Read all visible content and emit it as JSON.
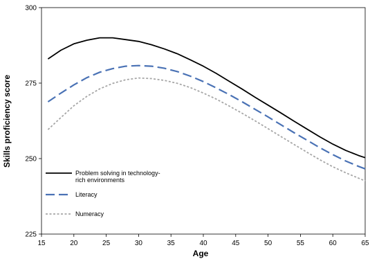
{
  "chart_data": {
    "type": "line",
    "title": "",
    "xlabel": "Age",
    "ylabel": "Skills proficiency score",
    "xlim": [
      15,
      65
    ],
    "ylim": [
      225,
      300
    ],
    "xticks": [
      15,
      20,
      25,
      30,
      35,
      40,
      45,
      50,
      55,
      60,
      65
    ],
    "yticks": [
      225,
      250,
      275,
      300
    ],
    "grid": false,
    "legend_position": "left",
    "series": [
      {
        "name_lines": [
          "Problem solving in technology-",
          "rich environments"
        ],
        "style": "solid",
        "color": "#000000",
        "points": [
          [
            16,
            283
          ],
          [
            18,
            285.9
          ],
          [
            20,
            288
          ],
          [
            22,
            289.2
          ],
          [
            24,
            290
          ],
          [
            26,
            290
          ],
          [
            28,
            289.4
          ],
          [
            30,
            288.8
          ],
          [
            32,
            287.7
          ],
          [
            34,
            286.3
          ],
          [
            36,
            284.7
          ],
          [
            38,
            282.7
          ],
          [
            40,
            280.6
          ],
          [
            42,
            278.2
          ],
          [
            44,
            275.6
          ],
          [
            46,
            273
          ],
          [
            48,
            270.3
          ],
          [
            50,
            267.7
          ],
          [
            52,
            265.1
          ],
          [
            54,
            262.4
          ],
          [
            56,
            259.8
          ],
          [
            58,
            257.2
          ],
          [
            60,
            254.8
          ],
          [
            62,
            252.7
          ],
          [
            64,
            251
          ],
          [
            65,
            250.3
          ]
        ]
      },
      {
        "name": "Literacy",
        "style": "dashed",
        "color": "#4a72b5",
        "points": [
          [
            16,
            268.8
          ],
          [
            18,
            271.7
          ],
          [
            20,
            274.4
          ],
          [
            22,
            276.8
          ],
          [
            24,
            278.6
          ],
          [
            26,
            279.8
          ],
          [
            28,
            280.6
          ],
          [
            30,
            280.8
          ],
          [
            32,
            280.6
          ],
          [
            34,
            279.9
          ],
          [
            36,
            278.8
          ],
          [
            38,
            277.3
          ],
          [
            40,
            275.5
          ],
          [
            42,
            273.4
          ],
          [
            44,
            271.2
          ],
          [
            46,
            268.8
          ],
          [
            48,
            266.3
          ],
          [
            50,
            263.8
          ],
          [
            52,
            261.2
          ],
          [
            54,
            258.6
          ],
          [
            56,
            256.1
          ],
          [
            58,
            253.6
          ],
          [
            60,
            251.3
          ],
          [
            62,
            249.2
          ],
          [
            64,
            247.4
          ],
          [
            65,
            246.6
          ]
        ]
      },
      {
        "name": "Numeracy",
        "style": "dotted",
        "color": "#a6a6a6",
        "points": [
          [
            16,
            259.6
          ],
          [
            18,
            263.6
          ],
          [
            20,
            267.5
          ],
          [
            22,
            270.6
          ],
          [
            24,
            273.1
          ],
          [
            26,
            274.9
          ],
          [
            28,
            276.1
          ],
          [
            30,
            276.7
          ],
          [
            32,
            276.5
          ],
          [
            34,
            275.9
          ],
          [
            36,
            274.9
          ],
          [
            38,
            273.5
          ],
          [
            40,
            271.7
          ],
          [
            42,
            269.7
          ],
          [
            44,
            267.4
          ],
          [
            46,
            265
          ],
          [
            48,
            262.5
          ],
          [
            50,
            259.9
          ],
          [
            52,
            257.3
          ],
          [
            54,
            254.7
          ],
          [
            56,
            252.1
          ],
          [
            58,
            249.6
          ],
          [
            60,
            247.3
          ],
          [
            62,
            245.3
          ],
          [
            64,
            243.5
          ],
          [
            65,
            242.6
          ]
        ]
      }
    ]
  }
}
